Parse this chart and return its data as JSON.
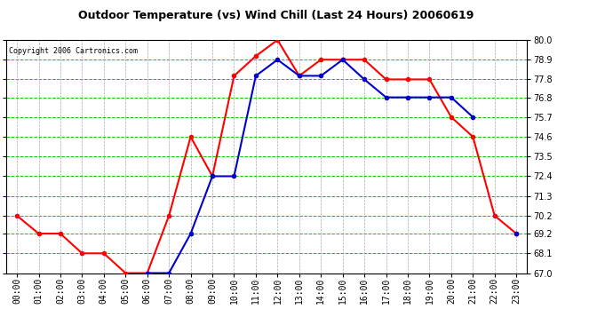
{
  "title": "Outdoor Temperature (vs) Wind Chill (Last 24 Hours) 20060619",
  "copyright": "Copyright 2006 Cartronics.com",
  "hours": [
    "00:00",
    "01:00",
    "02:00",
    "03:00",
    "04:00",
    "05:00",
    "06:00",
    "07:00",
    "08:00",
    "09:00",
    "10:00",
    "11:00",
    "12:00",
    "13:00",
    "14:00",
    "15:00",
    "16:00",
    "17:00",
    "18:00",
    "19:00",
    "20:00",
    "21:00",
    "22:00",
    "23:00"
  ],
  "temp": [
    70.2,
    69.2,
    69.2,
    68.1,
    68.1,
    67.0,
    67.0,
    70.2,
    74.6,
    72.4,
    78.0,
    79.1,
    80.0,
    78.0,
    78.9,
    78.9,
    78.9,
    77.8,
    77.8,
    77.8,
    75.7,
    74.6,
    70.2,
    69.2
  ],
  "windchill": [
    null,
    null,
    null,
    null,
    null,
    null,
    67.0,
    67.0,
    69.2,
    72.4,
    72.4,
    78.0,
    78.9,
    78.0,
    78.0,
    78.9,
    77.8,
    76.8,
    76.8,
    76.8,
    76.8,
    75.7,
    null,
    69.2
  ],
  "temp_color": "#ff0000",
  "windchill_color": "#0000cc",
  "bg_color": "#ffffff",
  "plot_bg_color": "#ffffff",
  "grid_h_color": "#00cc00",
  "grid_v_color": "#aaaaaa",
  "ymin": 67.0,
  "ymax": 80.0,
  "yticks": [
    67.0,
    68.1,
    69.2,
    70.2,
    71.3,
    72.4,
    73.5,
    74.6,
    75.7,
    76.8,
    77.8,
    78.9,
    80.0
  ],
  "markersize": 3,
  "linewidth": 1.5,
  "title_fontsize": 9,
  "copyright_fontsize": 6,
  "tick_fontsize": 7
}
